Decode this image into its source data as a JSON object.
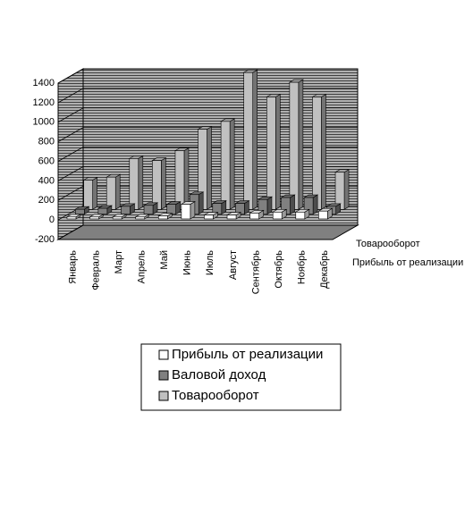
{
  "chart_data": {
    "type": "bar3d",
    "categories": [
      "Январь",
      "Февраль",
      "Март",
      "Апрель",
      "Май",
      "Июнь",
      "Июль",
      "Август",
      "Сентябрь",
      "Октябрь",
      "Ноябрь",
      "Декабрь"
    ],
    "series": [
      {
        "name": "Прибыль от реализации",
        "color": "#ffffff",
        "values": [
          20,
          20,
          20,
          20,
          30,
          150,
          40,
          40,
          60,
          70,
          70,
          80
        ]
      },
      {
        "name": "Валовой доход",
        "color": "#808080",
        "values": [
          50,
          60,
          80,
          90,
          100,
          200,
          110,
          110,
          150,
          170,
          170,
          80
        ]
      },
      {
        "name": "Товарооборот",
        "color": "#c0c0c0",
        "values": [
          300,
          330,
          520,
          500,
          600,
          820,
          900,
          1400,
          1150,
          1300,
          1150,
          380
        ]
      }
    ],
    "ylim": [
      -200,
      1400
    ],
    "yticks": [
      -200,
      0,
      200,
      400,
      600,
      800,
      1000,
      1200,
      1400
    ],
    "grid": true
  }
}
